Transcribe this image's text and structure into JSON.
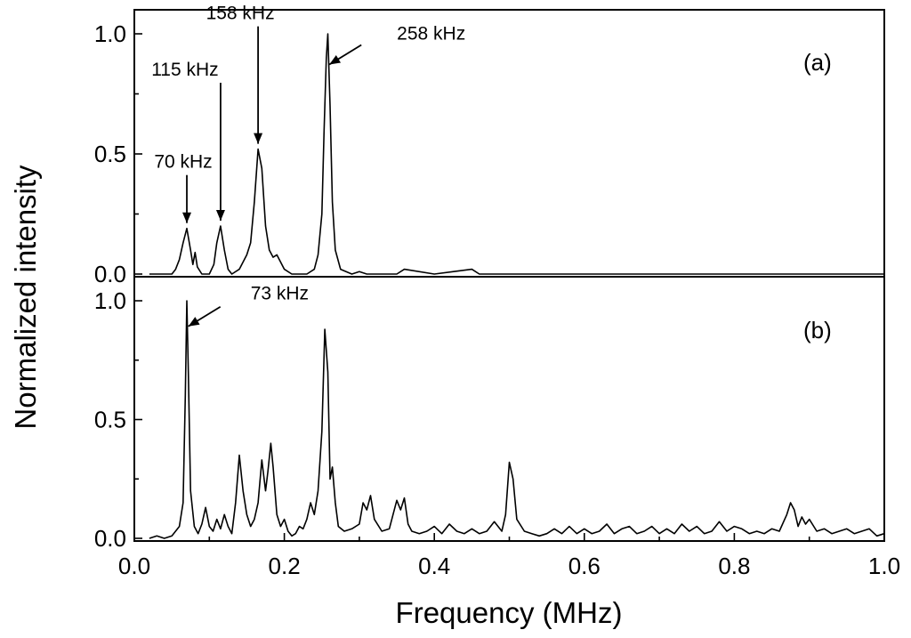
{
  "chart_data": {
    "type": "line",
    "xlabel": "Frequency (MHz)",
    "ylabel": "Normalized intensity",
    "xlim": [
      0.0,
      1.0
    ],
    "x_ticks": [
      "0.0",
      "0.2",
      "0.4",
      "0.6",
      "0.8",
      "1.0"
    ],
    "grid": false,
    "legend": "none",
    "panels": [
      {
        "label": "(a)",
        "ylim": [
          0.0,
          1.05
        ],
        "y_ticks": [
          "0.0",
          "0.5",
          "1.0"
        ],
        "series": [
          {
            "x": [
              0.02,
              0.05,
              0.055,
              0.06,
              0.065,
              0.07,
              0.075,
              0.078,
              0.081,
              0.084,
              0.09,
              0.1,
              0.106,
              0.11,
              0.115,
              0.12,
              0.125,
              0.13,
              0.14,
              0.15,
              0.155,
              0.16,
              0.165,
              0.17,
              0.175,
              0.18,
              0.185,
              0.19,
              0.2,
              0.21,
              0.22,
              0.23,
              0.24,
              0.245,
              0.25,
              0.253,
              0.256,
              0.258,
              0.261,
              0.264,
              0.268,
              0.275,
              0.29,
              0.3,
              0.31,
              0.32,
              0.35,
              0.36,
              0.4,
              0.45,
              0.46,
              0.5,
              0.6,
              0.7,
              0.8,
              0.9,
              1.0
            ],
            "y": [
              0.0,
              0.0,
              0.02,
              0.06,
              0.13,
              0.19,
              0.1,
              0.04,
              0.09,
              0.03,
              0.0,
              0.0,
              0.04,
              0.13,
              0.2,
              0.1,
              0.02,
              0.0,
              0.02,
              0.08,
              0.13,
              0.3,
              0.52,
              0.44,
              0.2,
              0.1,
              0.07,
              0.08,
              0.02,
              0.0,
              0.0,
              0.0,
              0.02,
              0.08,
              0.25,
              0.6,
              0.9,
              1.0,
              0.7,
              0.3,
              0.1,
              0.02,
              0.0,
              0.01,
              0.0,
              0.0,
              0.0,
              0.02,
              0.0,
              0.02,
              0.0,
              0.0,
              0.0,
              0.0,
              0.0,
              0.0,
              0.0
            ]
          }
        ],
        "annotations": [
          {
            "text": "70 kHz",
            "x": 0.07,
            "y": 0.19
          },
          {
            "text": "115 kHz",
            "x": 0.115,
            "y": 0.2
          },
          {
            "text": "158 kHz",
            "x": 0.165,
            "y": 0.52
          },
          {
            "text": "258 kHz",
            "x": 0.26,
            "y": 0.85
          }
        ]
      },
      {
        "label": "(b)",
        "ylim": [
          0.0,
          1.05
        ],
        "y_ticks": [
          "0.0",
          "0.5",
          "1.0"
        ],
        "series": [
          {
            "x": [
              0.02,
              0.03,
              0.04,
              0.05,
              0.06,
              0.065,
              0.068,
              0.07,
              0.072,
              0.075,
              0.08,
              0.085,
              0.09,
              0.095,
              0.1,
              0.105,
              0.11,
              0.115,
              0.12,
              0.125,
              0.13,
              0.135,
              0.14,
              0.145,
              0.15,
              0.155,
              0.16,
              0.165,
              0.17,
              0.175,
              0.178,
              0.182,
              0.185,
              0.19,
              0.195,
              0.2,
              0.205,
              0.21,
              0.215,
              0.22,
              0.225,
              0.23,
              0.235,
              0.24,
              0.245,
              0.25,
              0.254,
              0.258,
              0.261,
              0.264,
              0.268,
              0.272,
              0.28,
              0.29,
              0.3,
              0.305,
              0.31,
              0.315,
              0.32,
              0.33,
              0.34,
              0.345,
              0.35,
              0.355,
              0.36,
              0.365,
              0.37,
              0.38,
              0.39,
              0.4,
              0.41,
              0.42,
              0.43,
              0.44,
              0.45,
              0.46,
              0.47,
              0.48,
              0.49,
              0.495,
              0.5,
              0.505,
              0.51,
              0.52,
              0.53,
              0.54,
              0.55,
              0.56,
              0.57,
              0.58,
              0.59,
              0.6,
              0.61,
              0.62,
              0.63,
              0.64,
              0.65,
              0.66,
              0.67,
              0.68,
              0.69,
              0.7,
              0.71,
              0.72,
              0.73,
              0.74,
              0.75,
              0.76,
              0.77,
              0.78,
              0.79,
              0.8,
              0.81,
              0.82,
              0.83,
              0.84,
              0.85,
              0.86,
              0.87,
              0.875,
              0.88,
              0.885,
              0.89,
              0.895,
              0.9,
              0.91,
              0.92,
              0.93,
              0.94,
              0.95,
              0.96,
              0.97,
              0.98,
              0.99,
              1.0
            ],
            "y": [
              0.0,
              0.01,
              0.0,
              0.01,
              0.05,
              0.15,
              0.6,
              1.0,
              0.7,
              0.2,
              0.05,
              0.02,
              0.06,
              0.13,
              0.05,
              0.03,
              0.08,
              0.04,
              0.1,
              0.05,
              0.02,
              0.15,
              0.35,
              0.2,
              0.1,
              0.05,
              0.08,
              0.15,
              0.33,
              0.2,
              0.28,
              0.4,
              0.3,
              0.1,
              0.05,
              0.08,
              0.03,
              0.01,
              0.02,
              0.05,
              0.04,
              0.08,
              0.15,
              0.1,
              0.2,
              0.45,
              0.88,
              0.7,
              0.25,
              0.3,
              0.15,
              0.05,
              0.03,
              0.04,
              0.06,
              0.15,
              0.12,
              0.18,
              0.08,
              0.03,
              0.04,
              0.1,
              0.16,
              0.12,
              0.17,
              0.06,
              0.03,
              0.02,
              0.03,
              0.05,
              0.02,
              0.06,
              0.03,
              0.02,
              0.04,
              0.02,
              0.03,
              0.07,
              0.03,
              0.1,
              0.32,
              0.25,
              0.08,
              0.03,
              0.02,
              0.01,
              0.02,
              0.04,
              0.02,
              0.05,
              0.02,
              0.04,
              0.02,
              0.03,
              0.06,
              0.02,
              0.04,
              0.05,
              0.02,
              0.03,
              0.05,
              0.02,
              0.04,
              0.02,
              0.06,
              0.03,
              0.05,
              0.02,
              0.03,
              0.07,
              0.03,
              0.05,
              0.04,
              0.02,
              0.03,
              0.02,
              0.04,
              0.03,
              0.1,
              0.15,
              0.12,
              0.05,
              0.09,
              0.06,
              0.08,
              0.03,
              0.04,
              0.02,
              0.03,
              0.04,
              0.02,
              0.03,
              0.04,
              0.01,
              0.02
            ]
          }
        ],
        "annotations": [
          {
            "text": "73 kHz",
            "x": 0.072,
            "y": 0.87
          }
        ]
      }
    ]
  }
}
